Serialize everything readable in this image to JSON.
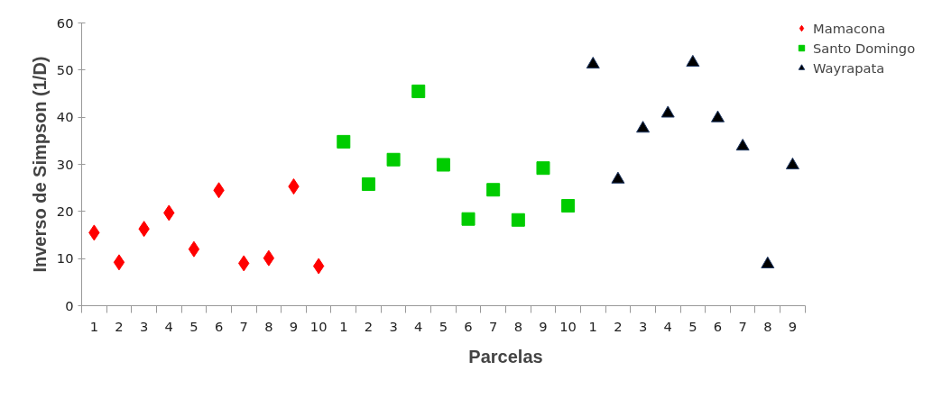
{
  "chart_data": {
    "type": "scatter",
    "xlabel": "Parcelas",
    "ylabel": "Inverso de Simpson (1/D)",
    "categories": [
      "1",
      "2",
      "3",
      "4",
      "5",
      "6",
      "7",
      "8",
      "9",
      "10",
      "1",
      "2",
      "3",
      "4",
      "5",
      "6",
      "7",
      "8",
      "9",
      "10",
      "1",
      "2",
      "3",
      "4",
      "5",
      "6",
      "7",
      "8",
      "9"
    ],
    "series": [
      {
        "name": "Mamacona",
        "color": "#ff0000",
        "marker": "diamond",
        "values": [
          15.5,
          9.2,
          16.3,
          19.7,
          12.0,
          24.5,
          9.0,
          10.1,
          25.3,
          8.4,
          null,
          null,
          null,
          null,
          null,
          null,
          null,
          null,
          null,
          null,
          null,
          null,
          null,
          null,
          null,
          null,
          null,
          null,
          null
        ]
      },
      {
        "name": "Santo Domingo",
        "color": "#00cc00",
        "marker": "square",
        "values": [
          null,
          null,
          null,
          null,
          null,
          null,
          null,
          null,
          null,
          null,
          34.8,
          25.8,
          31.0,
          45.5,
          29.9,
          18.4,
          24.6,
          18.2,
          29.2,
          21.2,
          null,
          null,
          null,
          null,
          null,
          null,
          null,
          null,
          null
        ]
      },
      {
        "name": "Wayrapata",
        "color": "#000000",
        "marker": "triangle",
        "values": [
          null,
          null,
          null,
          null,
          null,
          null,
          null,
          null,
          null,
          null,
          null,
          null,
          null,
          null,
          null,
          null,
          null,
          null,
          null,
          null,
          51.2,
          26.8,
          37.6,
          40.8,
          51.6,
          39.8,
          33.8,
          8.8,
          29.8
        ]
      }
    ],
    "ylim": [
      0,
      60
    ],
    "yticks": [
      0,
      10,
      20,
      30,
      40,
      50,
      60
    ],
    "grid": false,
    "legend": "top right"
  }
}
